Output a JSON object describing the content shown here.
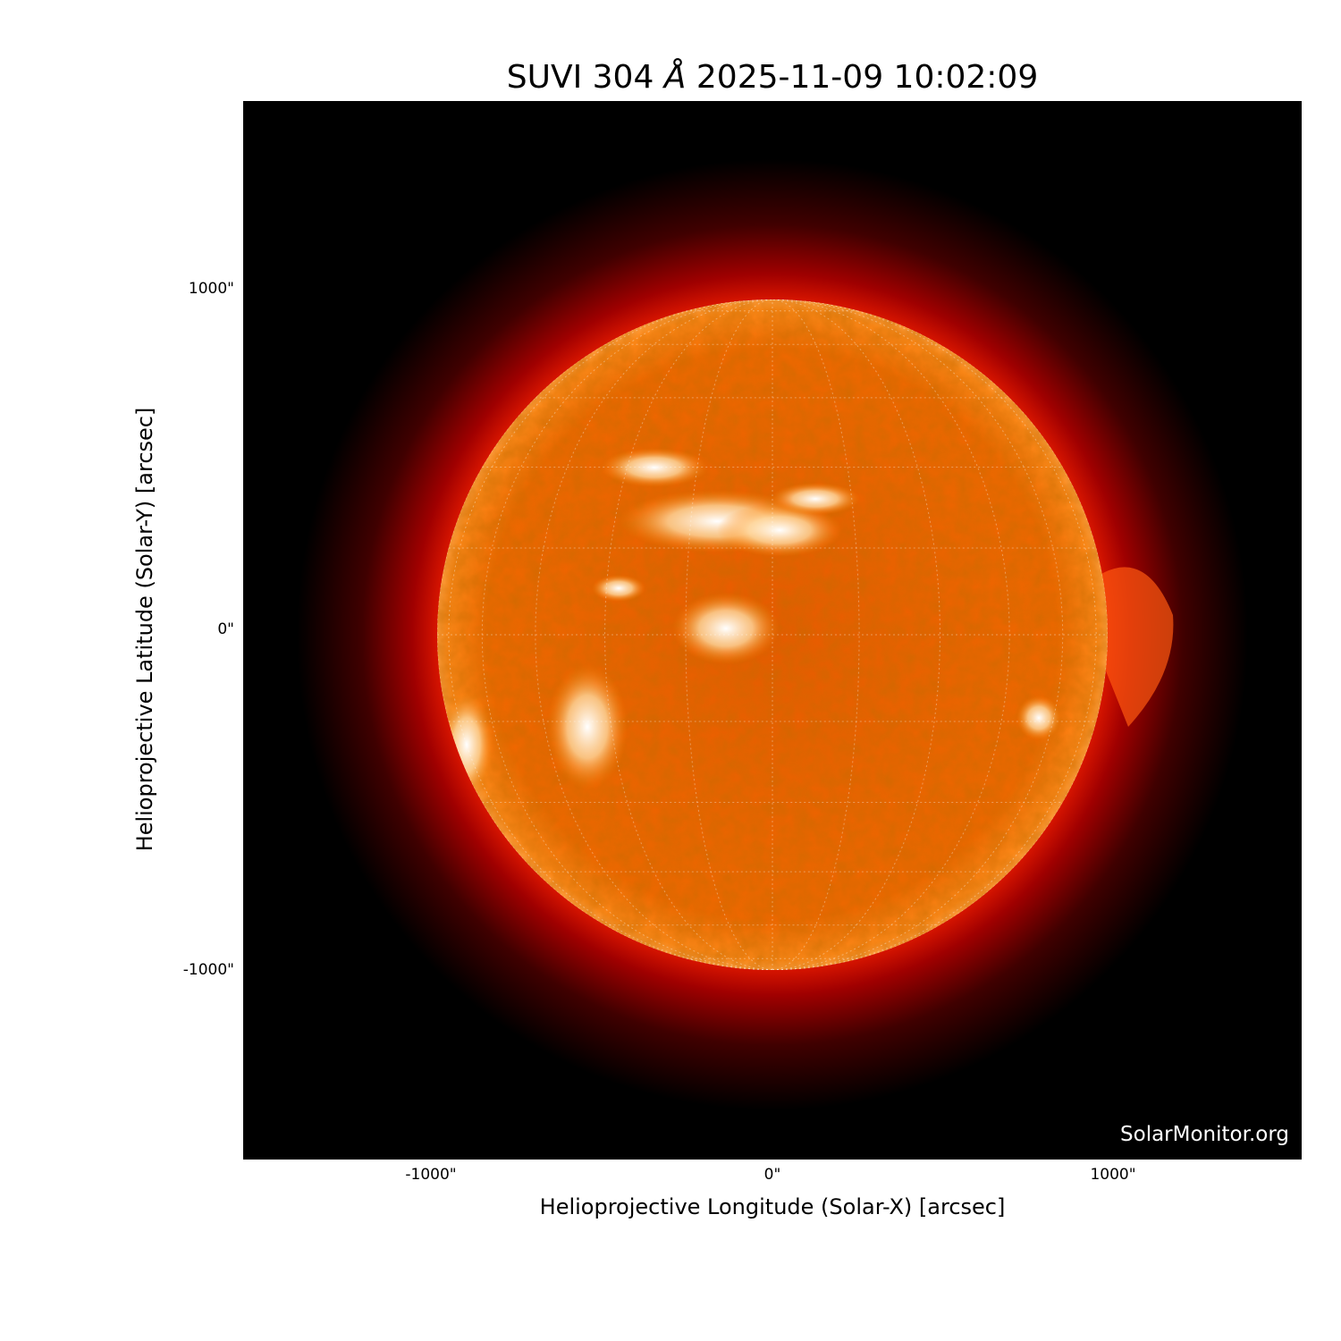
{
  "chart_data": {
    "type": "heatmap",
    "title_prefix": "SUVI 304 ",
    "title_unit": "Å",
    "title_time": " 2025-11-09 10:02:09",
    "xlabel": "Helioprojective Longitude (Solar-X) [arcsec]",
    "ylabel": "Helioprojective Latitude (Solar-Y) [arcsec]",
    "xlim": [
      -1554,
      1554
    ],
    "ylim": [
      -1554,
      1554
    ],
    "x_ticks": [
      {
        "value": -1000,
        "label": "-1000\""
      },
      {
        "value": 0,
        "label": "0\""
      },
      {
        "value": 1000,
        "label": "1000\""
      }
    ],
    "y_ticks": [
      {
        "value": 1000,
        "label": "1000\""
      },
      {
        "value": 0,
        "label": "0\""
      },
      {
        "value": -1000,
        "label": "-1000\""
      }
    ],
    "solar_radius_arcsec": 985,
    "grid_spacing_deg": 15,
    "colormap": "sdoaia304",
    "colors": {
      "background": "#000000",
      "disk": "#ff6a00",
      "limb": "#ff9a2a",
      "corona": "#b00000",
      "bright": "#ffffff",
      "grid": "#ffffff"
    }
  },
  "watermark": "SolarMonitor.org"
}
